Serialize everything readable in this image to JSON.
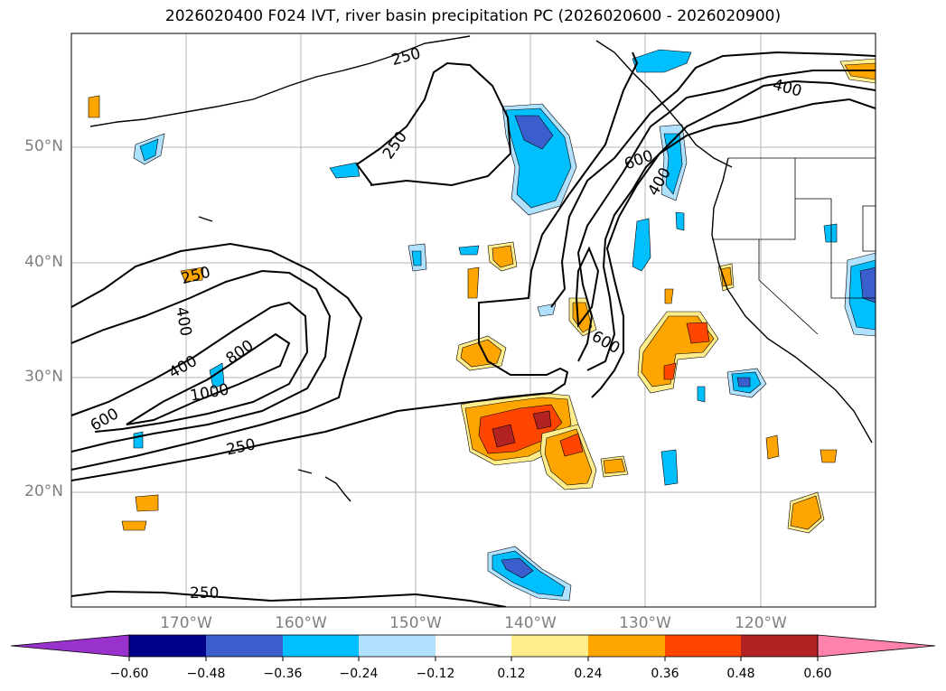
{
  "title": "2026020400 F024 IVT, river basin precipitation PC (2026020600 - 2026020900)",
  "map": {
    "lat_ticks": [
      {
        "value": 50,
        "label": "50°N"
      },
      {
        "value": 40,
        "label": "40°N"
      },
      {
        "value": 30,
        "label": "30°N"
      },
      {
        "value": 20,
        "label": "20°N"
      }
    ],
    "lon_ticks": [
      {
        "value": -170,
        "label": "170°W"
      },
      {
        "value": -160,
        "label": "160°W"
      },
      {
        "value": -150,
        "label": "150°W"
      },
      {
        "value": -140,
        "label": "140°W"
      },
      {
        "value": -130,
        "label": "130°W"
      },
      {
        "value": -120,
        "label": "120°W"
      }
    ],
    "lon_range": [
      -180,
      -110
    ],
    "lat_range": [
      10,
      60
    ],
    "grid": true
  },
  "ivt_contours": {
    "levels": [
      250,
      400,
      600,
      800,
      1000
    ],
    "labels": [
      "250",
      "250",
      "250",
      "250",
      "250",
      "400",
      "400",
      "400",
      "400",
      "600",
      "600",
      "600",
      "800",
      "1000"
    ]
  },
  "colorbar": {
    "tick_labels": [
      "−0.60",
      "−0.48",
      "−0.36",
      "−0.24",
      "−0.12",
      "0.12",
      "0.24",
      "0.36",
      "0.48",
      "0.60"
    ],
    "colors": [
      "#9932cc",
      "#00008b",
      "#3a5fcd",
      "#00bfff",
      "#b0e2ff",
      "#ffffff",
      "#ffec8b",
      "#ffa500",
      "#ff4500",
      "#b22222",
      "#ff82ab"
    ],
    "extend": "both"
  }
}
